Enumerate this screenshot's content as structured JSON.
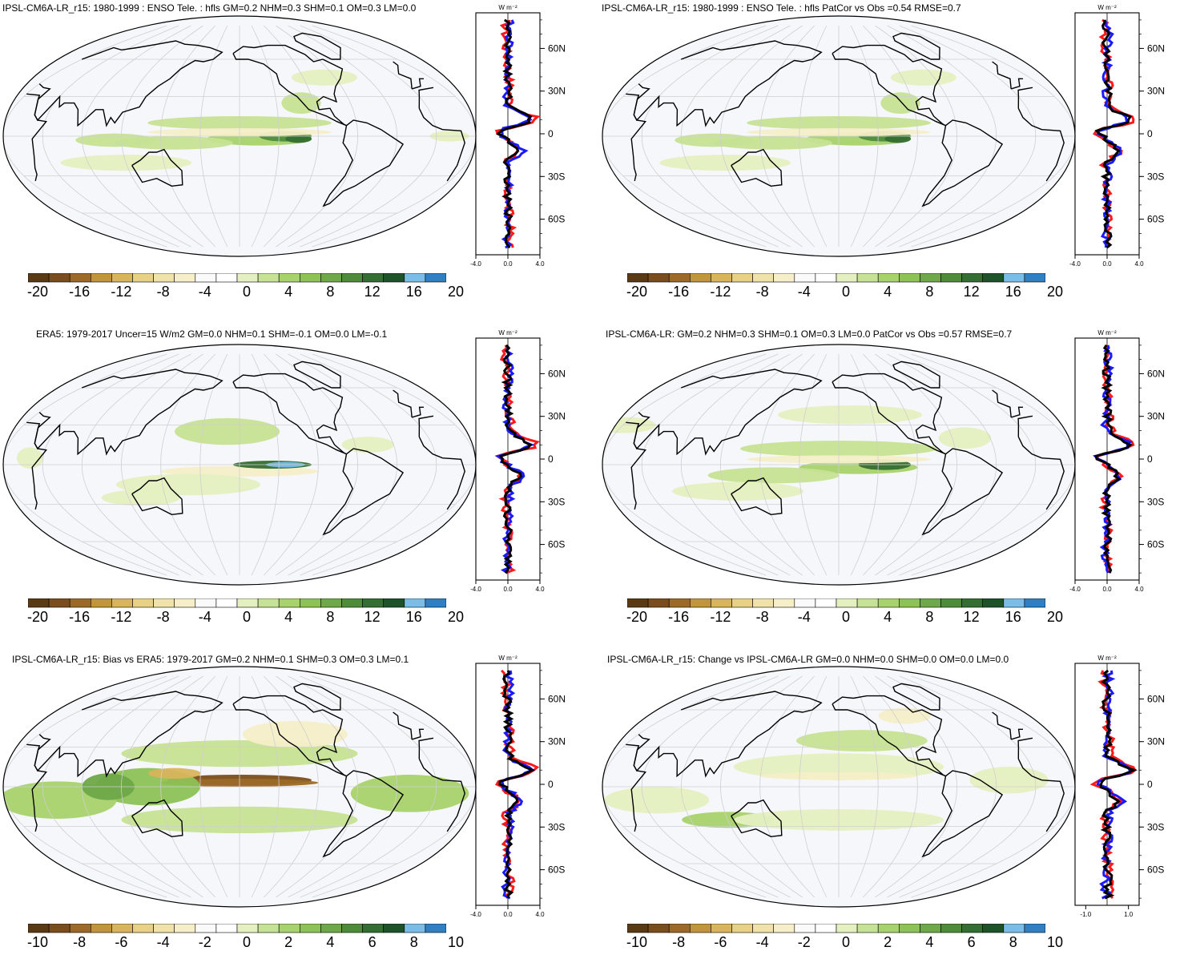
{
  "figure": {
    "colors": {
      "brown_scale": [
        "#5a3a14",
        "#7a4e1c",
        "#9c6a26",
        "#c1953c",
        "#d8b45c",
        "#e8d085",
        "#f0e2a8",
        "#f6eec8"
      ],
      "white_band": [
        "#fafafa",
        "#ffffff"
      ],
      "green_scale": [
        "#e4f0c0",
        "#c6e294",
        "#a8d26c",
        "#8cc256",
        "#6ea848",
        "#4e8c3c",
        "#356e32",
        "#1e5228"
      ],
      "blue_scale": [
        "#79bde8",
        "#2f7fc2"
      ],
      "map_bg": "#f6f7fb",
      "grid": "#cfcfcf",
      "line_red": "#ff1a1a",
      "line_blue": "#1a1aff",
      "line_black": "#000000"
    }
  },
  "panels": [
    {
      "title": "IPSL-CM6A-LR_r15: 1980-1999 : ENSO Tele. : hfls GM=0.2 NHM=0.3 SHM=0.1 OM=0.3 LM=0.0",
      "colorbar_labels": [
        "-20",
        "-16",
        "-12",
        "-8",
        "-4",
        "0",
        "4",
        "8",
        "12",
        "16",
        "20"
      ],
      "zonal": {
        "unit": "W m⁻²",
        "xticks": [
          "-4.0",
          "0.0",
          "4.0"
        ],
        "yticks": [
          "60N",
          "30N",
          "0",
          "30S",
          "60S"
        ]
      }
    },
    {
      "title": "IPSL-CM6A-LR_r15: 1980-1999 : ENSO Tele. : hfls PatCor vs Obs =0.54 RMSE=0.7",
      "colorbar_labels": [
        "-20",
        "-16",
        "-12",
        "-8",
        "-4",
        "0",
        "4",
        "8",
        "12",
        "16",
        "20"
      ],
      "zonal": {
        "unit": "W m⁻²",
        "xticks": [
          "-4.0",
          "0.0",
          "4.0"
        ],
        "yticks": [
          "60N",
          "30N",
          "0",
          "30S",
          "60S"
        ]
      }
    },
    {
      "title": "ERA5: 1979-2017 Uncer=15 W/m2 GM=0.0 NHM=0.1 SHM=-0.1 OM=0.0 LM=-0.1",
      "colorbar_labels": [
        "-20",
        "-16",
        "-12",
        "-8",
        "-4",
        "0",
        "4",
        "8",
        "12",
        "16",
        "20"
      ],
      "zonal": {
        "unit": "W m⁻²",
        "xticks": [
          "-4.0",
          "0.0",
          "4.0"
        ],
        "yticks": [
          "60N",
          "30N",
          "0",
          "30S",
          "60S"
        ]
      }
    },
    {
      "title": "IPSL-CM6A-LR: GM=0.2 NHM=0.3 SHM=0.1 OM=0.3 LM=0.0 PatCor vs Obs =0.57 RMSE=0.7",
      "colorbar_labels": [
        "-20",
        "-16",
        "-12",
        "-8",
        "-4",
        "0",
        "4",
        "8",
        "12",
        "16",
        "20"
      ],
      "zonal": {
        "unit": "W m⁻²",
        "xticks": [
          "-4.0",
          "0.0",
          "4.0"
        ],
        "yticks": [
          "60N",
          "30N",
          "0",
          "30S",
          "60S"
        ]
      }
    },
    {
      "title": "IPSL-CM6A-LR_r15: Bias vs ERA5: 1979-2017 GM=0.2 NHM=0.1 SHM=0.3 OM=0.3 LM=0.1",
      "colorbar_labels": [
        "-10",
        "-8",
        "-6",
        "-4",
        "-2",
        "0",
        "2",
        "4",
        "6",
        "8",
        "10"
      ],
      "zonal": {
        "unit": "W m⁻²",
        "xticks": [
          "-4.0",
          "0.0",
          "4.0"
        ],
        "yticks": [
          "60N",
          "30N",
          "0",
          "30S",
          "60S"
        ]
      }
    },
    {
      "title": "IPSL-CM6A-LR_r15: Change vs IPSL-CM6A-LR GM=0.0 NHM=0.0 SHM=0.0 OM=0.0 LM=0.0",
      "colorbar_labels": [
        "-10",
        "-8",
        "-6",
        "-4",
        "-2",
        "0",
        "2",
        "4",
        "6",
        "8",
        "10"
      ],
      "zonal": {
        "unit": "W m⁻²",
        "xticks": [
          "-1.0",
          "1.0"
        ],
        "yticks": [
          "60N",
          "30N",
          "0",
          "30S",
          "60S"
        ]
      }
    }
  ]
}
